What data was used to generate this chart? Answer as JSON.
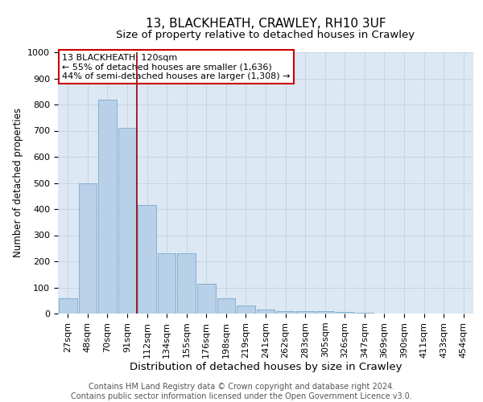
{
  "title1": "13, BLACKHEATH, CRAWLEY, RH10 3UF",
  "title2": "Size of property relative to detached houses in Crawley",
  "xlabel": "Distribution of detached houses by size in Crawley",
  "ylabel": "Number of detached properties",
  "categories": [
    "27sqm",
    "48sqm",
    "70sqm",
    "91sqm",
    "112sqm",
    "134sqm",
    "155sqm",
    "176sqm",
    "198sqm",
    "219sqm",
    "241sqm",
    "262sqm",
    "283sqm",
    "305sqm",
    "326sqm",
    "347sqm",
    "369sqm",
    "390sqm",
    "411sqm",
    "433sqm",
    "454sqm"
  ],
  "values": [
    60,
    500,
    820,
    710,
    415,
    230,
    230,
    115,
    60,
    30,
    15,
    10,
    10,
    10,
    5,
    2,
    1,
    0,
    0,
    1,
    0
  ],
  "bar_color": "#b8d0e8",
  "bar_edge_color": "#7aaac8",
  "grid_color": "#c8d4e0",
  "background_color": "#dce8f4",
  "vline_color": "#990000",
  "annotation_text": "13 BLACKHEATH: 120sqm\n← 55% of detached houses are smaller (1,636)\n44% of semi-detached houses are larger (1,308) →",
  "annotation_box_color": "#ffffff",
  "annotation_box_edge_color": "#cc0000",
  "footer1": "Contains HM Land Registry data © Crown copyright and database right 2024.",
  "footer2": "Contains public sector information licensed under the Open Government Licence v3.0.",
  "ylim": [
    0,
    1000
  ],
  "vline_pos": 3.5,
  "title1_fontsize": 11,
  "title2_fontsize": 9.5,
  "xlabel_fontsize": 9.5,
  "ylabel_fontsize": 8.5,
  "tick_fontsize": 8,
  "annotation_fontsize": 8,
  "footer_fontsize": 7
}
